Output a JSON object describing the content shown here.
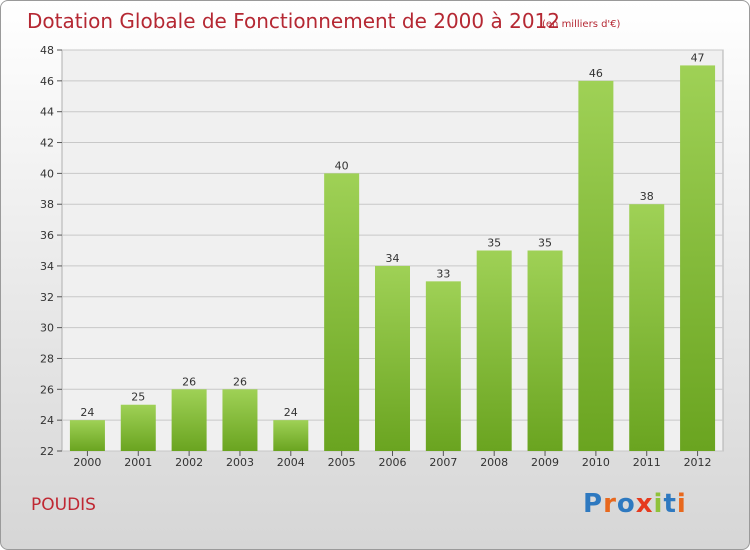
{
  "title": "Dotation Globale de Fonctionnement de 2000 à 2012",
  "subtitle": "(en milliers d'€)",
  "commune": "POUDIS",
  "logo": {
    "text": "Proxiti",
    "letters": [
      {
        "ch": "P",
        "color": "#2e79c0"
      },
      {
        "ch": "r",
        "color": "#e8681d"
      },
      {
        "ch": "o",
        "color": "#2e79c0"
      },
      {
        "ch": "x",
        "color": "#e63a1e"
      },
      {
        "ch": "i",
        "color": "#8fc23a"
      },
      {
        "ch": "t",
        "color": "#2e79c0"
      },
      {
        "ch": "i",
        "color": "#e8681d"
      }
    ]
  },
  "chart_data": {
    "type": "bar",
    "title": "Dotation Globale de Fonctionnement de 2000 à 2012",
    "subtitle": "(en milliers d'€)",
    "categories": [
      "2000",
      "2001",
      "2002",
      "2003",
      "2004",
      "2005",
      "2006",
      "2007",
      "2008",
      "2009",
      "2010",
      "2011",
      "2012"
    ],
    "values": [
      24,
      25,
      26,
      26,
      24,
      40,
      34,
      33,
      35,
      35,
      46,
      38,
      47
    ],
    "ylim": [
      22,
      48
    ],
    "yticks": [
      22,
      24,
      26,
      28,
      30,
      32,
      34,
      36,
      38,
      40,
      42,
      44,
      46,
      48
    ],
    "grid": true,
    "bar_color_top": "#9fd156",
    "bar_color_bottom": "#6aa420"
  }
}
